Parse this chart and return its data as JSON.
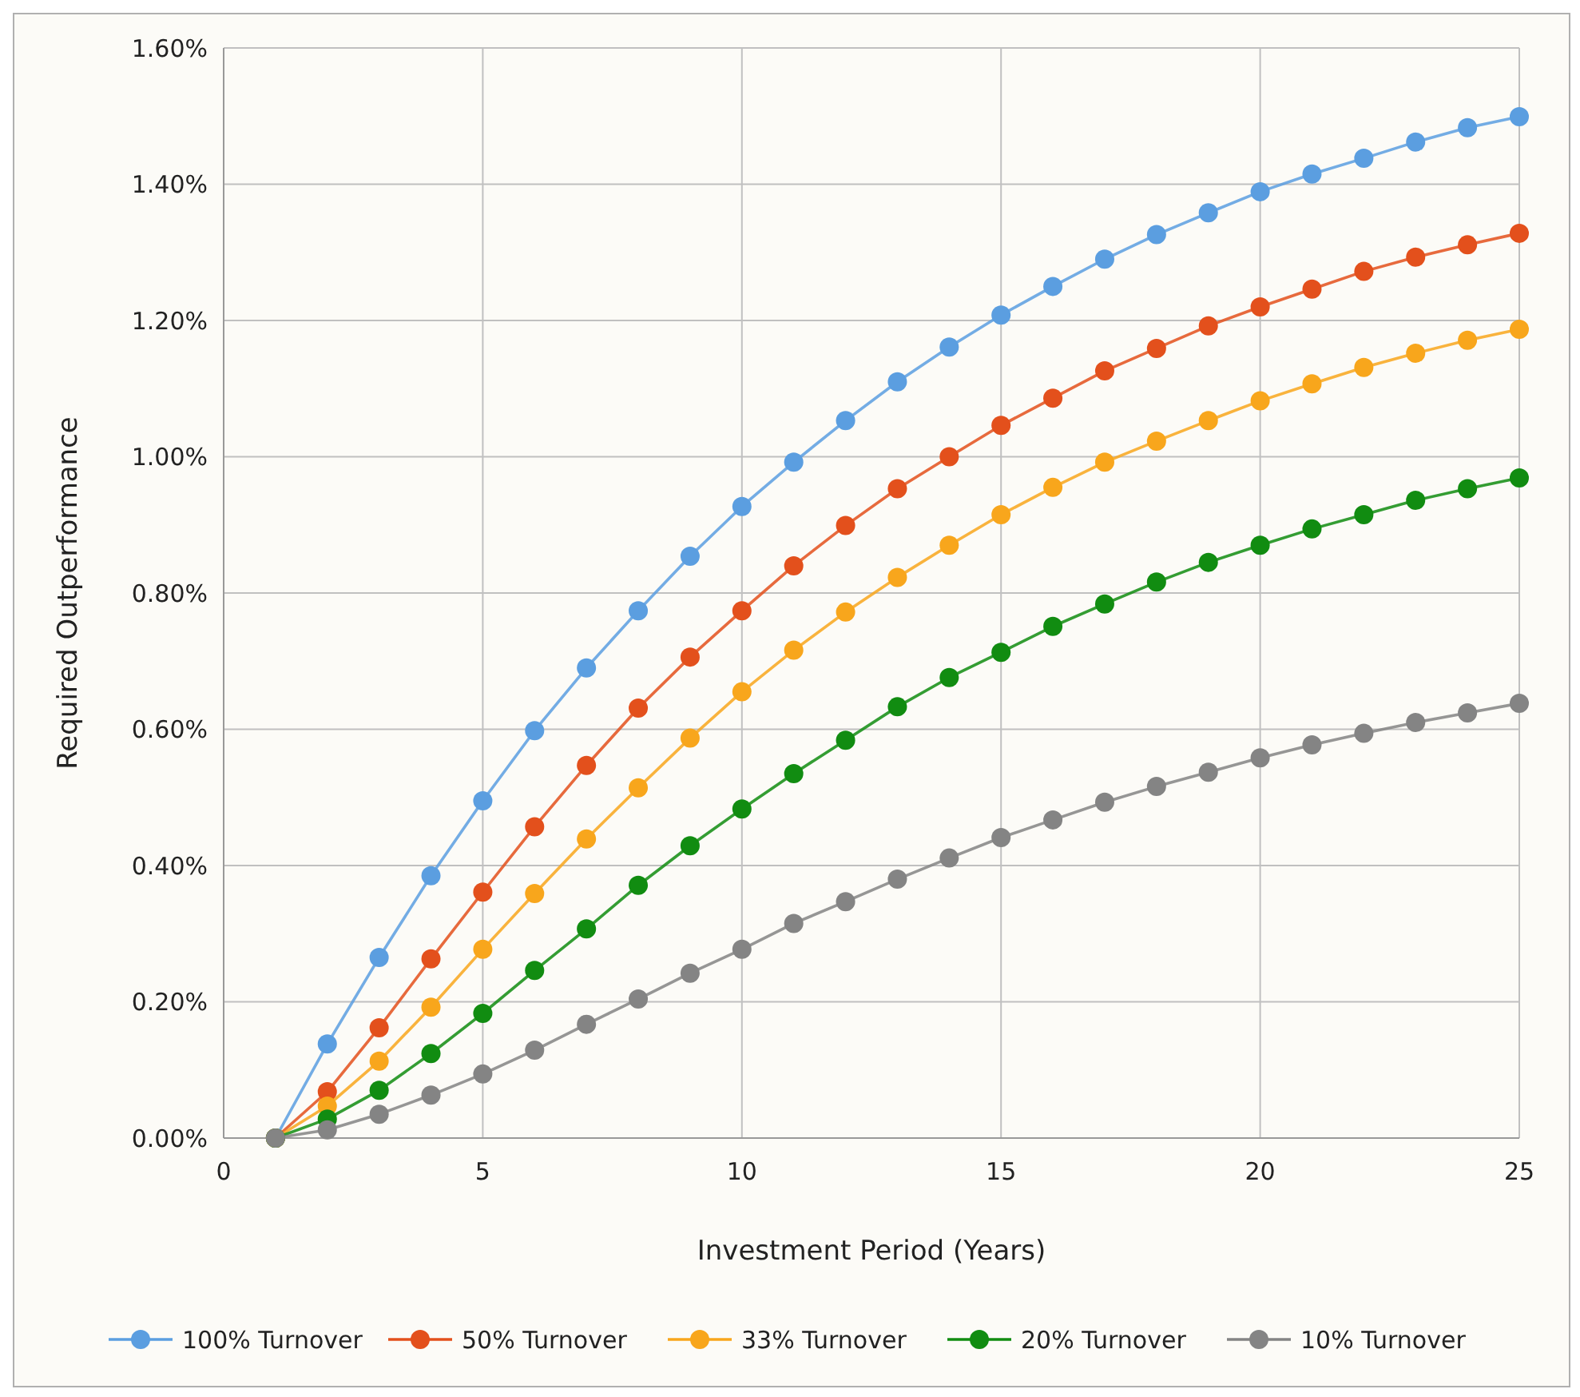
{
  "chart_data": {
    "type": "line",
    "xlabel": "Investment Period (Years)",
    "ylabel": "Required Outperformance",
    "x": [
      1,
      2,
      3,
      4,
      5,
      6,
      7,
      8,
      9,
      10,
      11,
      12,
      13,
      14,
      15,
      16,
      17,
      18,
      19,
      20,
      21,
      22,
      23,
      24,
      25
    ],
    "xlim": [
      0,
      25
    ],
    "xticks": [
      0,
      5,
      10,
      15,
      20,
      25
    ],
    "ylim": [
      0,
      1.6
    ],
    "yticks": [
      {
        "value": 0,
        "label": "0.00%"
      },
      {
        "value": 0.2,
        "label": "0.20%"
      },
      {
        "value": 0.4,
        "label": "0.40%"
      },
      {
        "value": 0.6,
        "label": "0.60%"
      },
      {
        "value": 0.8,
        "label": "0.80%"
      },
      {
        "value": 1.0,
        "label": "1.00%"
      },
      {
        "value": 1.2,
        "label": "1.20%"
      },
      {
        "value": 1.4,
        "label": "1.40%"
      },
      {
        "value": 1.6,
        "label": "1.60%"
      }
    ],
    "grid": true,
    "legend": "bottom",
    "marker": "circle",
    "line_style": "solid",
    "series": [
      {
        "name": "100% Turnover",
        "color": "#5b9ee0",
        "values": [
          0,
          0.138,
          0.265,
          0.385,
          0.495,
          0.598,
          0.69,
          0.774,
          0.854,
          0.927,
          0.992,
          1.053,
          1.11,
          1.161,
          1.208,
          1.25,
          1.29,
          1.326,
          1.358,
          1.389,
          1.415,
          1.438,
          1.462,
          1.483,
          1.499
        ]
      },
      {
        "name": "50% Turnover",
        "color": "#e3501c",
        "values": [
          0,
          0.068,
          0.162,
          0.263,
          0.361,
          0.457,
          0.547,
          0.631,
          0.706,
          0.774,
          0.84,
          0.899,
          0.953,
          1.0,
          1.046,
          1.086,
          1.126,
          1.159,
          1.192,
          1.22,
          1.246,
          1.272,
          1.293,
          1.311,
          1.328
        ]
      },
      {
        "name": "33% Turnover",
        "color": "#f8a61c",
        "values": [
          0,
          0.047,
          0.113,
          0.192,
          0.277,
          0.359,
          0.439,
          0.514,
          0.587,
          0.655,
          0.716,
          0.772,
          0.823,
          0.87,
          0.915,
          0.955,
          0.992,
          1.023,
          1.053,
          1.082,
          1.107,
          1.131,
          1.152,
          1.171,
          1.187
        ]
      },
      {
        "name": "20% Turnover",
        "color": "#118c11",
        "values": [
          0,
          0.028,
          0.07,
          0.124,
          0.183,
          0.246,
          0.307,
          0.371,
          0.429,
          0.483,
          0.535,
          0.584,
          0.633,
          0.676,
          0.713,
          0.751,
          0.784,
          0.816,
          0.845,
          0.87,
          0.894,
          0.915,
          0.936,
          0.953,
          0.969
        ]
      },
      {
        "name": "10% Turnover",
        "color": "#848484",
        "values": [
          0,
          0.012,
          0.035,
          0.063,
          0.094,
          0.129,
          0.167,
          0.204,
          0.242,
          0.277,
          0.315,
          0.347,
          0.38,
          0.411,
          0.441,
          0.467,
          0.493,
          0.516,
          0.537,
          0.558,
          0.577,
          0.594,
          0.61,
          0.624,
          0.638
        ]
      }
    ]
  }
}
